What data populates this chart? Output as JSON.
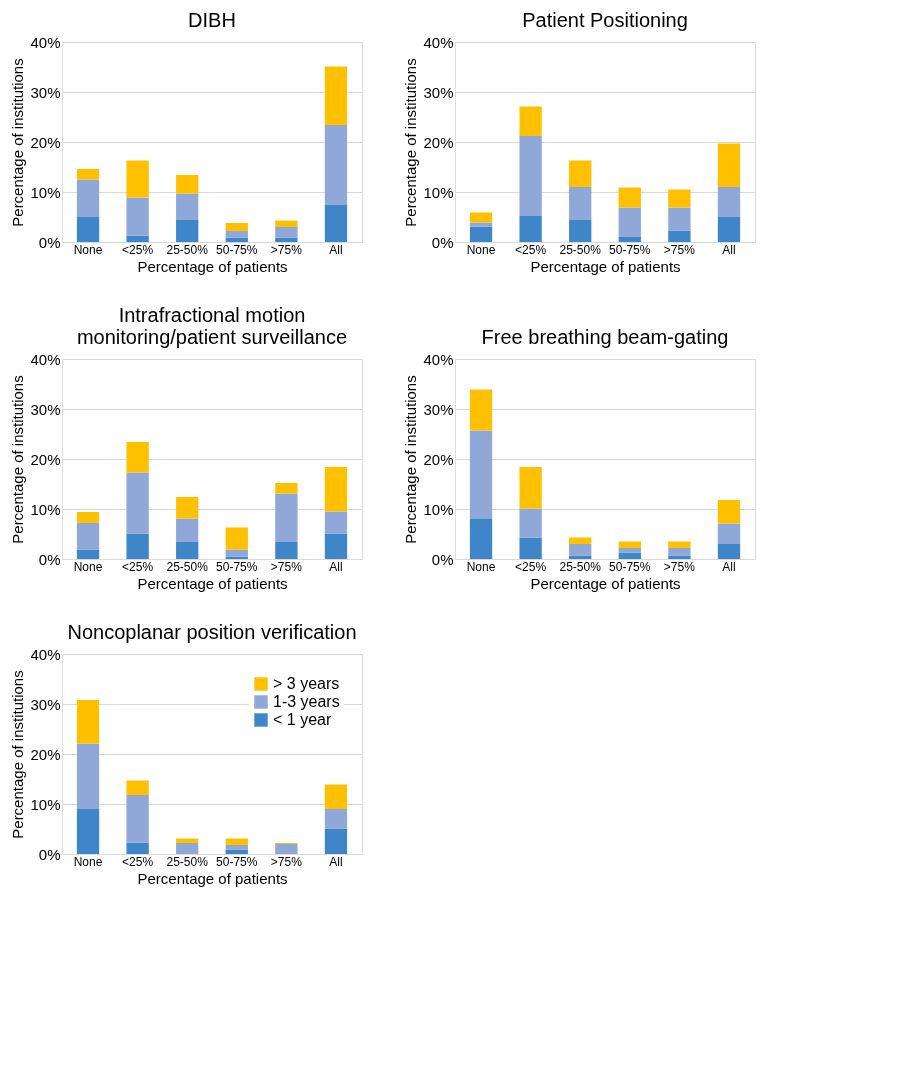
{
  "chart_data": [
    {
      "type": "bar",
      "stacked": true,
      "title": "DIBH",
      "xlabel": "Percentage of patients",
      "ylabel": "Percentage of institutions",
      "categories": [
        "None",
        "<25%",
        "25-50%",
        "50-75%",
        ">75%",
        "All"
      ],
      "ylim": [
        0,
        40
      ],
      "yticks": [
        {
          "value": 0,
          "label": "0%"
        },
        {
          "value": 10,
          "label": "10%"
        },
        {
          "value": 20,
          "label": "20%"
        },
        {
          "value": 30,
          "label": "30%"
        },
        {
          "value": 40,
          "label": "40%"
        }
      ],
      "grid": "y",
      "legend": false,
      "series": [
        {
          "color": "#3f86c9",
          "values": [
            5.0,
            1.3,
            4.4,
            0.9,
            0.9,
            7.4
          ]
        },
        {
          "color": "#8fa8d8",
          "values": [
            7.5,
            7.6,
            5.3,
            1.3,
            2.1,
            16.0
          ]
        },
        {
          "color": "#ffc000",
          "values": [
            2.1,
            7.4,
            3.7,
            1.6,
            1.3,
            11.7
          ]
        }
      ]
    },
    {
      "type": "bar",
      "stacked": true,
      "title": "Patient Positioning",
      "xlabel": "Percentage of patients",
      "ylabel": "Percentage of institutions",
      "categories": [
        "None",
        "<25%",
        "25-50%",
        "50-75%",
        ">75%",
        "All"
      ],
      "ylim": [
        0,
        40
      ],
      "yticks": [
        {
          "value": 0,
          "label": "0%"
        },
        {
          "value": 10,
          "label": "10%"
        },
        {
          "value": 20,
          "label": "20%"
        },
        {
          "value": 30,
          "label": "30%"
        },
        {
          "value": 40,
          "label": "40%"
        }
      ],
      "grid": "y",
      "legend": false,
      "series": [
        {
          "color": "#3f86c9",
          "values": [
            3.1,
            5.2,
            4.4,
            1.0,
            2.3,
            5.0
          ]
        },
        {
          "color": "#8fa8d8",
          "values": [
            0.8,
            16.0,
            6.6,
            5.9,
            4.6,
            6.0
          ]
        },
        {
          "color": "#ffc000",
          "values": [
            2.0,
            5.9,
            5.3,
            4.0,
            3.6,
            8.7
          ]
        }
      ]
    },
    {
      "type": "bar",
      "stacked": true,
      "title": "Intrafractional motion monitoring/patient  surveillance",
      "xlabel": "Percentage of patients",
      "ylabel": "Percentage of institutions",
      "categories": [
        "None",
        "<25%",
        "25-50%",
        "50-75%",
        ">75%",
        "All"
      ],
      "ylim": [
        0,
        40
      ],
      "yticks": [
        {
          "value": 0,
          "label": "0%"
        },
        {
          "value": 10,
          "label": "10%"
        },
        {
          "value": 20,
          "label": "20%"
        },
        {
          "value": 30,
          "label": "30%"
        },
        {
          "value": 40,
          "label": "40%"
        }
      ],
      "grid": "y",
      "legend": false,
      "series": [
        {
          "color": "#3f86c9",
          "values": [
            1.9,
            5.1,
            3.4,
            0.5,
            3.4,
            5.1
          ]
        },
        {
          "color": "#8fa8d8",
          "values": [
            5.3,
            12.2,
            4.7,
            1.4,
            9.7,
            4.4
          ]
        },
        {
          "color": "#ffc000",
          "values": [
            2.2,
            6.1,
            4.3,
            4.4,
            2.1,
            8.9
          ]
        }
      ]
    },
    {
      "type": "bar",
      "stacked": true,
      "title": "Free breathing beam-gating",
      "xlabel": "Percentage of patients",
      "ylabel": "Percentage of institutions",
      "categories": [
        "None",
        "<25%",
        "25-50%",
        "50-75%",
        ">75%",
        "All"
      ],
      "ylim": [
        0,
        40
      ],
      "yticks": [
        {
          "value": 0,
          "label": "0%"
        },
        {
          "value": 10,
          "label": "10%"
        },
        {
          "value": 20,
          "label": "20%"
        },
        {
          "value": 30,
          "label": "30%"
        },
        {
          "value": 40,
          "label": "40%"
        }
      ],
      "grid": "y",
      "legend": false,
      "series": [
        {
          "color": "#3f86c9",
          "values": [
            8.0,
            4.3,
            0.7,
            1.3,
            0.7,
            3.0
          ]
        },
        {
          "color": "#8fa8d8",
          "values": [
            17.7,
            5.8,
            2.3,
            0.9,
            1.5,
            4.1
          ]
        },
        {
          "color": "#ffc000",
          "values": [
            8.2,
            8.3,
            1.3,
            1.3,
            1.3,
            4.7
          ]
        }
      ]
    },
    {
      "type": "bar",
      "stacked": true,
      "title": "Noncoplanar position verification",
      "xlabel": "Percentage of patients",
      "ylabel": "Percentage of institutions",
      "categories": [
        "None",
        "<25%",
        "25-50%",
        "50-75%",
        ">75%",
        "All"
      ],
      "ylim": [
        0,
        40
      ],
      "yticks": [
        {
          "value": 0,
          "label": "0%"
        },
        {
          "value": 10,
          "label": "10%"
        },
        {
          "value": 20,
          "label": "20%"
        },
        {
          "value": 30,
          "label": "30%"
        },
        {
          "value": 40,
          "label": "40%"
        }
      ],
      "grid": "y",
      "legend": "top right",
      "series": [
        {
          "name": "< 1 year",
          "color": "#3f86c9",
          "values": [
            9.0,
            2.3,
            0,
            0.9,
            0,
            5.1
          ]
        },
        {
          "name": "1-3 years",
          "color": "#8fa8d8",
          "values": [
            13.1,
            9.5,
            2.2,
            0.9,
            2.0,
            3.9
          ]
        },
        {
          "name": "> 3 years",
          "color": "#ffc000",
          "values": [
            8.7,
            2.9,
            0.9,
            1.3,
            0.2,
            4.9
          ]
        }
      ]
    }
  ]
}
